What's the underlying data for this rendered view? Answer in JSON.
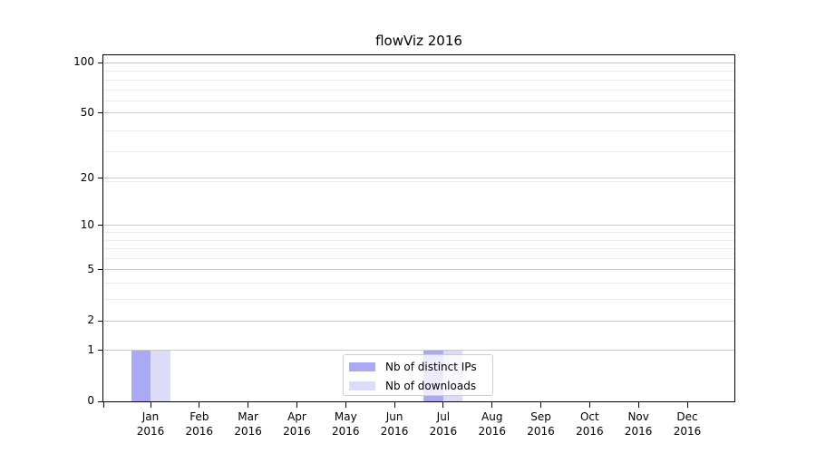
{
  "chart_data": {
    "type": "bar",
    "title": "flowViz 2016",
    "categories": [
      "Jan",
      "Feb",
      "Mar",
      "Apr",
      "May",
      "Jun",
      "Jul",
      "Aug",
      "Sep",
      "Oct",
      "Nov",
      "Dec"
    ],
    "category_year": "2016",
    "series": [
      {
        "name": "Nb of distinct IPs",
        "color": "#a9a9f5",
        "values": [
          1,
          0,
          0,
          0,
          0,
          0,
          1,
          0,
          0,
          0,
          0,
          0
        ]
      },
      {
        "name": "Nb of downloads",
        "color": "#dcdcf9",
        "values": [
          1,
          0,
          0,
          0,
          0,
          0,
          1,
          0,
          0,
          0,
          0,
          0
        ]
      }
    ],
    "xlabel": "",
    "ylabel": "",
    "yscale": "log1p",
    "ylim": [
      0,
      111
    ],
    "ytick_values": [
      0,
      1,
      2,
      5,
      10,
      20,
      50,
      100
    ],
    "ytick_labels": [
      "0",
      "1",
      "2",
      "5",
      "10",
      "20",
      "50",
      "100"
    ],
    "minor_gridline_values": [
      3,
      4,
      6,
      7,
      8,
      9,
      19,
      29,
      39,
      59,
      69,
      79,
      89
    ],
    "grid": true,
    "legend_position": "lower center"
  },
  "colors": {
    "bar_distinct_ips": "#a9a9f5",
    "bar_downloads": "#dcdcf9",
    "major_grid": "#c9c9c9",
    "minor_grid": "#ececec",
    "axis": "#000000",
    "legend_border": "#cccccc"
  }
}
